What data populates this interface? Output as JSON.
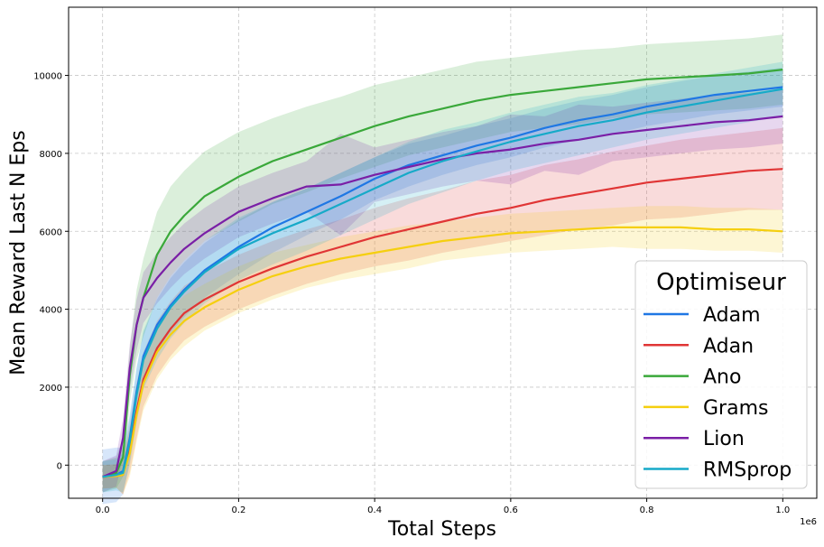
{
  "chart_data": {
    "type": "line",
    "title": "",
    "xlabel": "Total Steps",
    "ylabel": "Mean Reward Last N Eps",
    "x_offset_label": "1e6",
    "xlim": [
      -0.05,
      1.05
    ],
    "ylim": [
      -850,
      11750
    ],
    "xticks": [
      0.0,
      0.2,
      0.4,
      0.6,
      0.8,
      1.0
    ],
    "xtick_labels": [
      "0.0",
      "0.2",
      "0.4",
      "0.6",
      "0.8",
      "1.0"
    ],
    "yticks": [
      0,
      2000,
      4000,
      6000,
      8000,
      10000
    ],
    "ytick_labels": [
      "0",
      "2000",
      "4000",
      "6000",
      "8000",
      "10000"
    ],
    "grid": true,
    "legend": {
      "title": "Optimiseur",
      "position": "lower-right"
    },
    "x": [
      0.0,
      0.02,
      0.03,
      0.04,
      0.05,
      0.06,
      0.08,
      0.1,
      0.12,
      0.15,
      0.2,
      0.25,
      0.3,
      0.35,
      0.4,
      0.45,
      0.5,
      0.55,
      0.6,
      0.65,
      0.7,
      0.75,
      0.8,
      0.85,
      0.9,
      0.95,
      1.0
    ],
    "series": [
      {
        "name": "Adam",
        "color": "#1f77e4",
        "values": [
          -300,
          -250,
          -150,
          700,
          1900,
          2800,
          3600,
          4100,
          4500,
          5000,
          5600,
          6100,
          6500,
          6900,
          7350,
          7700,
          7950,
          8200,
          8400,
          8650,
          8850,
          9000,
          9200,
          9350,
          9500,
          9600,
          9700
        ],
        "band": [
          700,
          700,
          600,
          600,
          600,
          600,
          650,
          700,
          700,
          700,
          700,
          650,
          600,
          600,
          550,
          550,
          500,
          500,
          500,
          500,
          500,
          500,
          500,
          500,
          500,
          500,
          500
        ]
      },
      {
        "name": "Adan",
        "color": "#e03535",
        "values": [
          -300,
          -280,
          -250,
          400,
          1400,
          2200,
          3000,
          3500,
          3900,
          4250,
          4700,
          5050,
          5350,
          5600,
          5850,
          6050,
          6250,
          6450,
          6600,
          6800,
          6950,
          7100,
          7250,
          7350,
          7450,
          7550,
          7600
        ],
        "band": [
          300,
          300,
          500,
          600,
          700,
          700,
          700,
          700,
          700,
          700,
          700,
          700,
          700,
          700,
          750,
          800,
          800,
          850,
          850,
          900,
          900,
          950,
          950,
          1000,
          1000,
          1000,
          1050
        ]
      },
      {
        "name": "Ano",
        "color": "#3aa83a",
        "values": [
          -300,
          -200,
          200,
          2300,
          3600,
          4300,
          5400,
          6000,
          6400,
          6900,
          7400,
          7800,
          8100,
          8400,
          8700,
          8950,
          9150,
          9350,
          9500,
          9600,
          9700,
          9800,
          9900,
          9950,
          10000,
          10050,
          10150
        ],
        "band": [
          400,
          400,
          500,
          700,
          900,
          1000,
          1100,
          1150,
          1150,
          1150,
          1150,
          1100,
          1100,
          1050,
          1050,
          1000,
          1000,
          1000,
          950,
          950,
          950,
          900,
          900,
          900,
          900,
          900,
          900
        ]
      },
      {
        "name": "Grams",
        "color": "#f5cf0f",
        "values": [
          -300,
          -280,
          -250,
          300,
          1300,
          2100,
          2900,
          3350,
          3700,
          4050,
          4500,
          4850,
          5100,
          5300,
          5450,
          5600,
          5750,
          5850,
          5950,
          6000,
          6050,
          6100,
          6100,
          6100,
          6050,
          6050,
          6000
        ],
        "band": [
          300,
          300,
          500,
          600,
          700,
          700,
          700,
          650,
          650,
          600,
          600,
          600,
          550,
          550,
          550,
          550,
          500,
          500,
          500,
          500,
          500,
          500,
          550,
          550,
          550,
          550,
          550
        ]
      },
      {
        "name": "Lion",
        "color": "#7a1fa6",
        "values": [
          -300,
          -150,
          700,
          2500,
          3600,
          4300,
          4800,
          5200,
          5550,
          5950,
          6500,
          6850,
          7150,
          7200,
          7450,
          7650,
          7850,
          8000,
          8100,
          8250,
          8350,
          8500,
          8600,
          8700,
          8800,
          8850,
          8950
        ],
        "band": [
          400,
          400,
          500,
          600,
          650,
          650,
          650,
          650,
          650,
          650,
          650,
          650,
          650,
          1300,
          700,
          700,
          700,
          700,
          900,
          700,
          900,
          700,
          700,
          700,
          700,
          700,
          700
        ]
      },
      {
        "name": "RMSprop",
        "color": "#16aac8",
        "values": [
          -300,
          -250,
          -200,
          600,
          1800,
          2700,
          3500,
          4050,
          4450,
          4950,
          5550,
          5950,
          6300,
          6700,
          7100,
          7500,
          7800,
          8050,
          8300,
          8500,
          8700,
          8850,
          9050,
          9200,
          9350,
          9500,
          9650
        ],
        "band": [
          400,
          400,
          500,
          600,
          700,
          750,
          800,
          800,
          800,
          800,
          800,
          800,
          800,
          800,
          800,
          800,
          800,
          750,
          750,
          750,
          750,
          700,
          700,
          700,
          700,
          700,
          700
        ]
      }
    ]
  }
}
